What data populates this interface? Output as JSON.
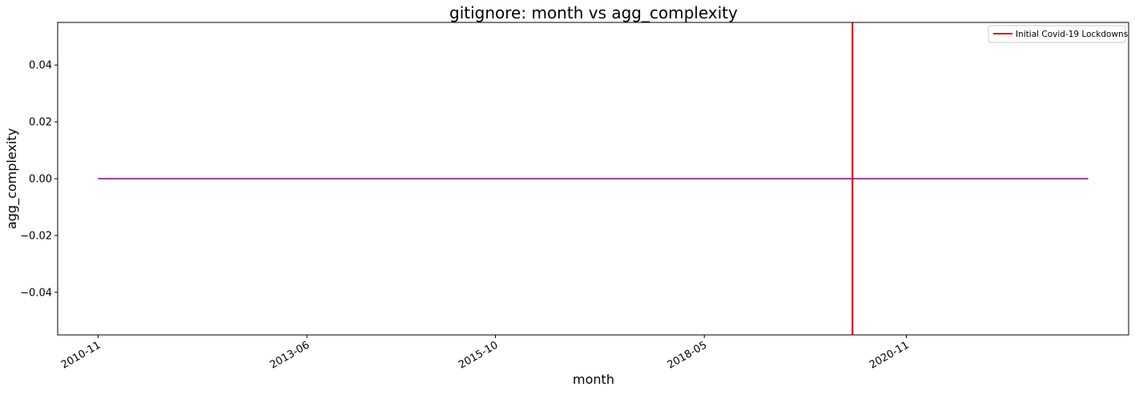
{
  "chart_data": {
    "type": "line",
    "title": "gitignore: month vs agg_complexity",
    "xlabel": "month",
    "ylabel": "agg_complexity",
    "x_tick_labels": [
      "2010-11",
      "2013-06",
      "2015-10",
      "2018-05",
      "2020-11"
    ],
    "x_ticks": [
      "2010-11",
      "2013-06",
      "2015-10",
      "2018-05",
      "2020-11"
    ],
    "xlim": [
      "2010-05",
      "2023-08"
    ],
    "ylim": [
      -0.055,
      0.055
    ],
    "y_ticks": [
      -0.04,
      -0.02,
      0.0,
      0.02,
      0.04
    ],
    "y_tick_labels": [
      "−0.04",
      "−0.02",
      "0.00",
      "0.02",
      "0.04"
    ],
    "series": [
      {
        "color": "#800080",
        "x": [
          "2010-11",
          "2023-02"
        ],
        "y": [
          0,
          0
        ]
      }
    ],
    "annotations": [
      {
        "type": "vline",
        "x": "2020-03",
        "label": "Initial Covid-19 Lockdowns",
        "color": "#e00000"
      }
    ],
    "legend": {
      "placement": "top-right",
      "entries": [
        "Initial Covid-19 Lockdowns"
      ]
    },
    "grid": false
  }
}
